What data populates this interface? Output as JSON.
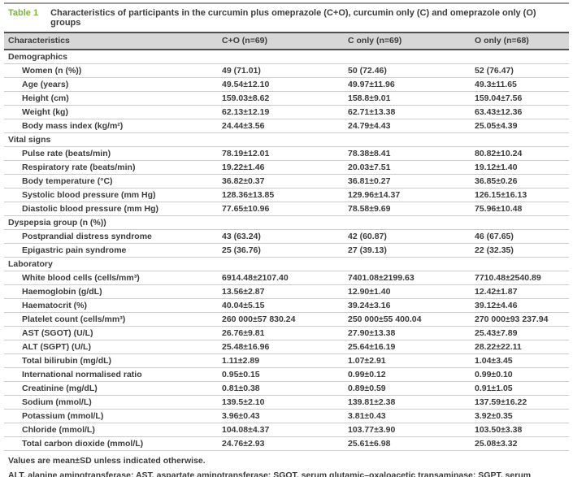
{
  "table": {
    "label": "Table 1",
    "title": "Characteristics of participants in the curcumin plus omeprazole (C+O), curcumin only (C) and omeprazole only (O) groups",
    "columns": [
      "Characteristics",
      "C+O (n=69)",
      "C only (n=69)",
      "O only (n=68)"
    ],
    "sections": [
      {
        "name": "Demographics",
        "rows": [
          {
            "label": "Women (n (%))",
            "values": [
              "49 (71.01)",
              "50 (72.46)",
              "52 (76.47)"
            ]
          },
          {
            "label": "Age (years)",
            "values": [
              "49.54±12.10",
              "49.97±11.96",
              "49.3±11.65"
            ]
          },
          {
            "label": "Height (cm)",
            "values": [
              "159.03±8.62",
              "158.8±9.01",
              "159.04±7.56"
            ]
          },
          {
            "label": "Weight (kg)",
            "values": [
              "62.13±12.19",
              "62.71±13.38",
              "63.43±12.36"
            ]
          },
          {
            "label": "Body mass index (kg/m²)",
            "values": [
              "24.44±3.56",
              "24.79±4.43",
              "25.05±4.39"
            ]
          }
        ]
      },
      {
        "name": "Vital signs",
        "rows": [
          {
            "label": "Pulse rate (beats/min)",
            "values": [
              "78.19±12.01",
              "78.38±8.41",
              "80.82±10.24"
            ]
          },
          {
            "label": "Respiratory rate (beats/min)",
            "values": [
              "19.22±1.46",
              "20.03±7.51",
              "19.12±1.40"
            ]
          },
          {
            "label": "Body temperature (°C)",
            "values": [
              "36.82±0.37",
              "36.81±0.27",
              "36.85±0.26"
            ]
          },
          {
            "label": "Systolic blood pressure (mm Hg)",
            "values": [
              "128.36±13.85",
              "129.96±14.37",
              "126.15±16.13"
            ]
          },
          {
            "label": "Diastolic blood pressure (mm Hg)",
            "values": [
              "77.65±10.96",
              "78.58±9.69",
              "75.96±10.48"
            ]
          }
        ]
      },
      {
        "name": "Dyspepsia group (n (%))",
        "rows": [
          {
            "label": "Postprandial distress syndrome",
            "values": [
              "43 (63.24)",
              "42 (60.87)",
              "46 (67.65)"
            ]
          },
          {
            "label": "Epigastric pain syndrome",
            "values": [
              "25 (36.76)",
              "27 (39.13)",
              "22 (32.35)"
            ]
          }
        ]
      },
      {
        "name": "Laboratory",
        "rows": [
          {
            "label": "White blood cells (cells/mm³)",
            "values": [
              "6914.48±2107.40",
              "7401.08±2199.63",
              "7710.48±2540.89"
            ]
          },
          {
            "label": "Haemoglobin (g/dL)",
            "values": [
              "13.56±2.87",
              "12.90±1.40",
              "12.42±1.87"
            ]
          },
          {
            "label": "Haematocrit (%)",
            "values": [
              "40.04±5.15",
              "39.24±3.16",
              "39.12±4.46"
            ]
          },
          {
            "label": "Platelet count (cells/mm³)",
            "values": [
              "260 000±57 830.24",
              "250 000±55 400.04",
              "270 000±93 237.94"
            ]
          },
          {
            "label": "AST (SGOT) (U/L)",
            "values": [
              "26.76±9.81",
              "27.90±13.38",
              "25.43±7.89"
            ]
          },
          {
            "label": "ALT (SGPT) (U/L)",
            "values": [
              "25.48±16.96",
              "25.64±16.19",
              "28.22±22.11"
            ]
          },
          {
            "label": "Total bilirubin (mg/dL)",
            "values": [
              "1.11±2.89",
              "1.07±2.91",
              "1.04±3.45"
            ]
          },
          {
            "label": "International normalised ratio",
            "values": [
              "0.95±0.15",
              "0.99±0.12",
              "0.99±0.10"
            ]
          },
          {
            "label": "Creatinine (mg/dL)",
            "values": [
              "0.81±0.38",
              "0.89±0.59",
              "0.91±1.05"
            ]
          },
          {
            "label": "Sodium (mmol/L)",
            "values": [
              "139.5±2.10",
              "139.81±2.38",
              "137.59±16.22"
            ]
          },
          {
            "label": "Potassium (mmol/L)",
            "values": [
              "3.96±0.43",
              "3.81±0.43",
              "3.92±0.35"
            ]
          },
          {
            "label": "Chloride (mmol/L)",
            "values": [
              "104.08±4.37",
              "103.77±3.90",
              "103.50±3.38"
            ]
          },
          {
            "label": "Total carbon dioxide (mmol/L)",
            "values": [
              "24.76±2.93",
              "25.61±6.98",
              "25.08±3.32"
            ]
          }
        ]
      }
    ],
    "footnotes": [
      "Values are mean±SD unless indicated otherwise.",
      "ALT, alanine aminotransferase; AST, aspartate aminotransferase; SGOT, serum glutamic–oxaloacetic transaminase; SGPT, serum glutamic–pyruvic transaminase."
    ],
    "colors": {
      "table_label_green": "#7cb13e",
      "header_bg": "#d7d7d7",
      "text": "#3b3b3b",
      "dark_rule": "#4f4f4f",
      "light_rule": "#cbcbcb"
    }
  }
}
